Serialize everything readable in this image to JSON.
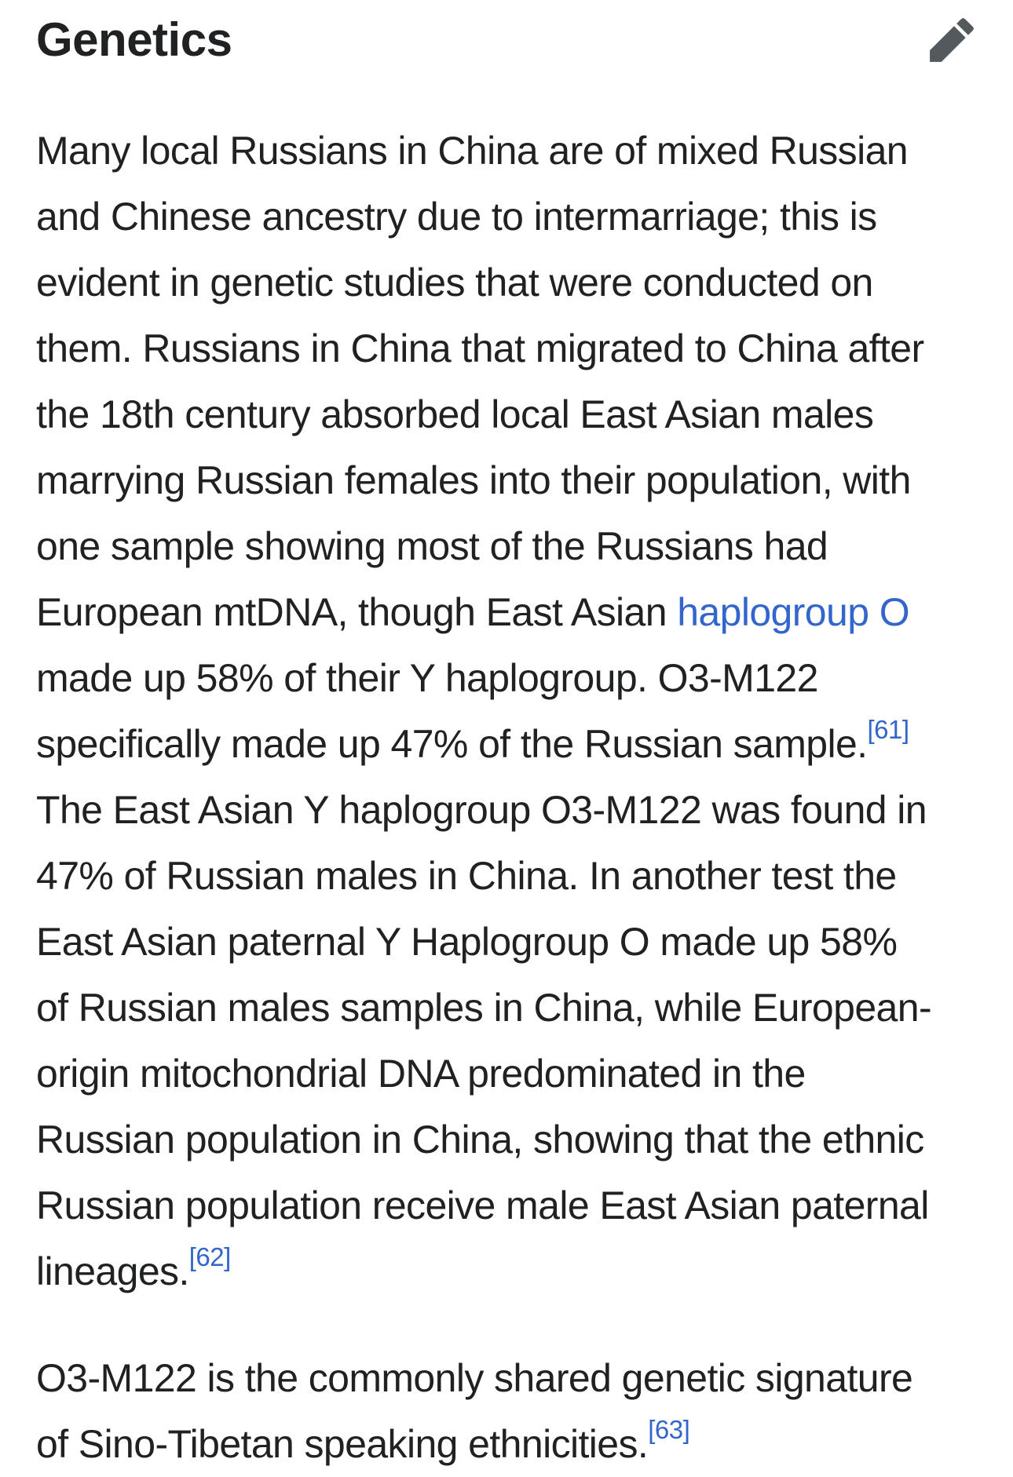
{
  "section": {
    "title": "Genetics",
    "edit_icon": "pencil-edit-icon"
  },
  "colors": {
    "background": "#ffffff",
    "text": "#202122",
    "link": "#3366cc",
    "icon": "#54595d"
  },
  "article": {
    "paragraphs": [
      {
        "lines": [
          [
            {
              "type": "text",
              "text": "Many local Russians in China are of mixed Russian"
            }
          ],
          [
            {
              "type": "text",
              "text": "and Chinese ancestry due to intermarriage; this is"
            }
          ],
          [
            {
              "type": "text",
              "text": "evident in genetic studies that were conducted on"
            }
          ],
          [
            {
              "type": "text",
              "text": "them. Russians in China that migrated to China after"
            }
          ],
          [
            {
              "type": "text",
              "text": "the 18th century absorbed local East Asian males"
            }
          ],
          [
            {
              "type": "text",
              "text": "marrying Russian females into their population, with"
            }
          ],
          [
            {
              "type": "text",
              "text": "one sample showing most of the Russians had"
            }
          ],
          [
            {
              "type": "text",
              "text": "European mtDNA, though East Asian "
            },
            {
              "type": "link",
              "text": "haplogroup O"
            }
          ],
          [
            {
              "type": "text",
              "text": "made up 58% of their Y haplogroup. O3-M122"
            }
          ],
          [
            {
              "type": "text",
              "text": "specifically made up 47% of the Russian sample."
            },
            {
              "type": "ref",
              "text": "[61]"
            }
          ],
          [
            {
              "type": "text",
              "text": "The East Asian Y haplogroup O3-M122 was found in"
            }
          ],
          [
            {
              "type": "text",
              "text": "47% of Russian males in China. In another test the"
            }
          ],
          [
            {
              "type": "text",
              "text": "East Asian paternal Y Haplogroup O made up 58%"
            }
          ],
          [
            {
              "type": "text",
              "text": "of Russian males samples in China, while European-"
            }
          ],
          [
            {
              "type": "text",
              "text": "origin mitochondrial DNA predominated in the"
            }
          ],
          [
            {
              "type": "text",
              "text": "Russian population in China, showing that the ethnic"
            }
          ],
          [
            {
              "type": "text",
              "text": "Russian population receive male East Asian paternal"
            }
          ],
          [
            {
              "type": "text",
              "text": "lineages."
            },
            {
              "type": "ref",
              "text": "[62]"
            }
          ]
        ]
      },
      {
        "lines": [
          [
            {
              "type": "text",
              "text": "O3-M122 is the commonly shared genetic signature"
            }
          ],
          [
            {
              "type": "text",
              "text": "of Sino-Tibetan speaking ethnicities."
            },
            {
              "type": "ref",
              "text": "[63]"
            }
          ]
        ]
      }
    ]
  }
}
